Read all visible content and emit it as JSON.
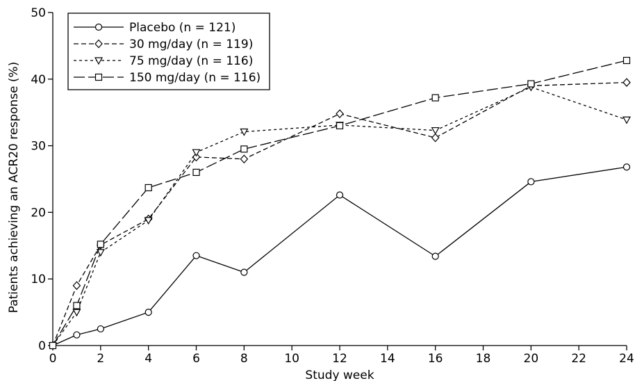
{
  "chart_data": {
    "type": "line",
    "title": "",
    "xlabel": "Study week",
    "ylabel": "Patients achieving an ACR20 response (%)",
    "xlim": [
      0,
      24
    ],
    "ylim": [
      0,
      50
    ],
    "xticks": [
      0,
      2,
      4,
      6,
      8,
      10,
      12,
      14,
      16,
      18,
      20,
      22,
      24
    ],
    "yticks": [
      0,
      10,
      20,
      30,
      40,
      50
    ],
    "grid": false,
    "legend_position": "top-left",
    "series": [
      {
        "name": "Placebo (n = 121)",
        "marker": "circle",
        "dash": "solid",
        "x": [
          0,
          1,
          2,
          4,
          6,
          8,
          12,
          16,
          20,
          24
        ],
        "y": [
          0,
          1.6,
          2.5,
          5.0,
          13.5,
          11.0,
          22.6,
          13.4,
          24.6,
          26.8
        ]
      },
      {
        "name": "30 mg/day (n = 119)",
        "marker": "diamond",
        "dash": "dashed",
        "x": [
          0,
          1,
          2,
          4,
          6,
          8,
          12,
          16,
          20,
          24
        ],
        "y": [
          0,
          9.0,
          15.1,
          19.0,
          28.3,
          28.0,
          34.8,
          31.2,
          39.0,
          39.5
        ]
      },
      {
        "name": "75 mg/day (n = 116)",
        "marker": "triangle-down",
        "dash": "dotted",
        "x": [
          0,
          1,
          2,
          4,
          6,
          8,
          12,
          16,
          20,
          24
        ],
        "y": [
          0,
          5.0,
          14.0,
          18.8,
          29.0,
          32.1,
          33.1,
          32.3,
          38.8,
          33.9
        ]
      },
      {
        "name": "150 mg/day (n = 116)",
        "marker": "square",
        "dash": "long-dash",
        "x": [
          0,
          1,
          2,
          4,
          6,
          8,
          12,
          16,
          20,
          24
        ],
        "y": [
          0,
          6.0,
          15.2,
          23.7,
          26.0,
          29.5,
          33.0,
          37.2,
          39.3,
          42.8
        ]
      }
    ]
  }
}
